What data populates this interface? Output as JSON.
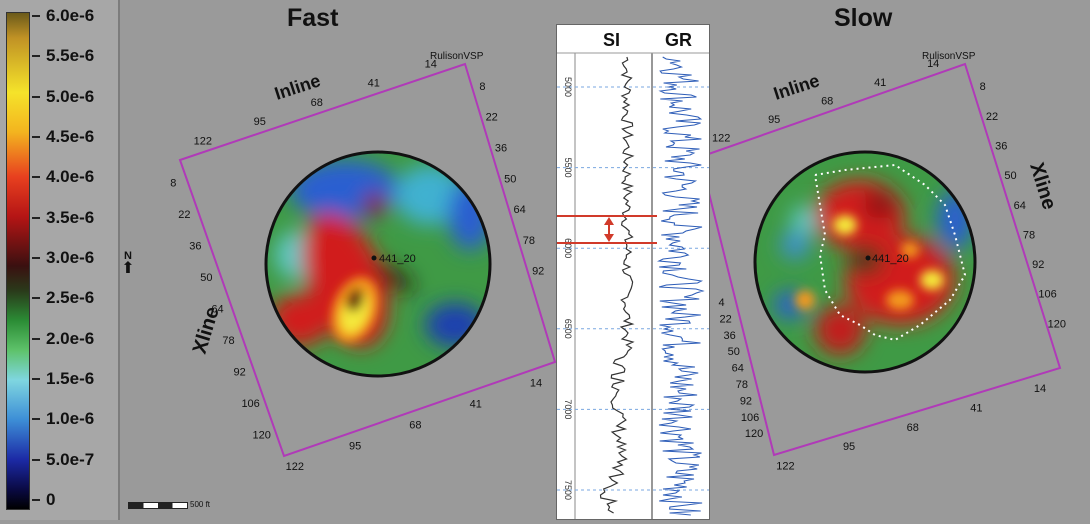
{
  "colorbar": {
    "labels": [
      "6.0e-6",
      "5.5e-6",
      "5.0e-6",
      "4.5e-6",
      "4.0e-6",
      "3.5e-6",
      "3.0e-6",
      "2.5e-6",
      "2.0e-6",
      "1.5e-6",
      "1.0e-6",
      "5.0e-7",
      "0"
    ]
  },
  "left_map": {
    "title": "Fast",
    "inline_label": "Inline",
    "xline_label": "Xline",
    "well_label": "RulisonVSP",
    "top_ticks": [
      "122",
      "95",
      "68",
      "41",
      "14"
    ],
    "right_ticks": [
      "8",
      "22",
      "36",
      "50",
      "64",
      "78",
      "92"
    ],
    "left_ticks": [
      "8",
      "22",
      "36",
      "50",
      "64",
      "78",
      "92",
      "106",
      "120"
    ],
    "bottom_ticks": [
      "122",
      "95",
      "68",
      "41",
      "14"
    ],
    "point_label": "441_20"
  },
  "right_map": {
    "title": "Slow",
    "inline_label": "Inline",
    "xline_label": "Xline",
    "well_label": "RulisonVSP",
    "top_ticks": [
      "122",
      "95",
      "68",
      "41",
      "14"
    ],
    "right_ticks": [
      "8",
      "22",
      "36",
      "50",
      "64",
      "78",
      "92",
      "106",
      "120"
    ],
    "left_ticks": [
      "4",
      "22",
      "36",
      "50",
      "64",
      "78",
      "92",
      "106",
      "120"
    ],
    "bottom_ticks": [
      "122",
      "95",
      "68",
      "41",
      "14"
    ],
    "point_label": "441_20"
  },
  "log": {
    "headers": [
      "SI",
      "GR"
    ],
    "depths": [
      "5000",
      "5500",
      "6000",
      "6500",
      "7000",
      "7500"
    ]
  },
  "north_label": "N",
  "scale_label": "500 ft"
}
